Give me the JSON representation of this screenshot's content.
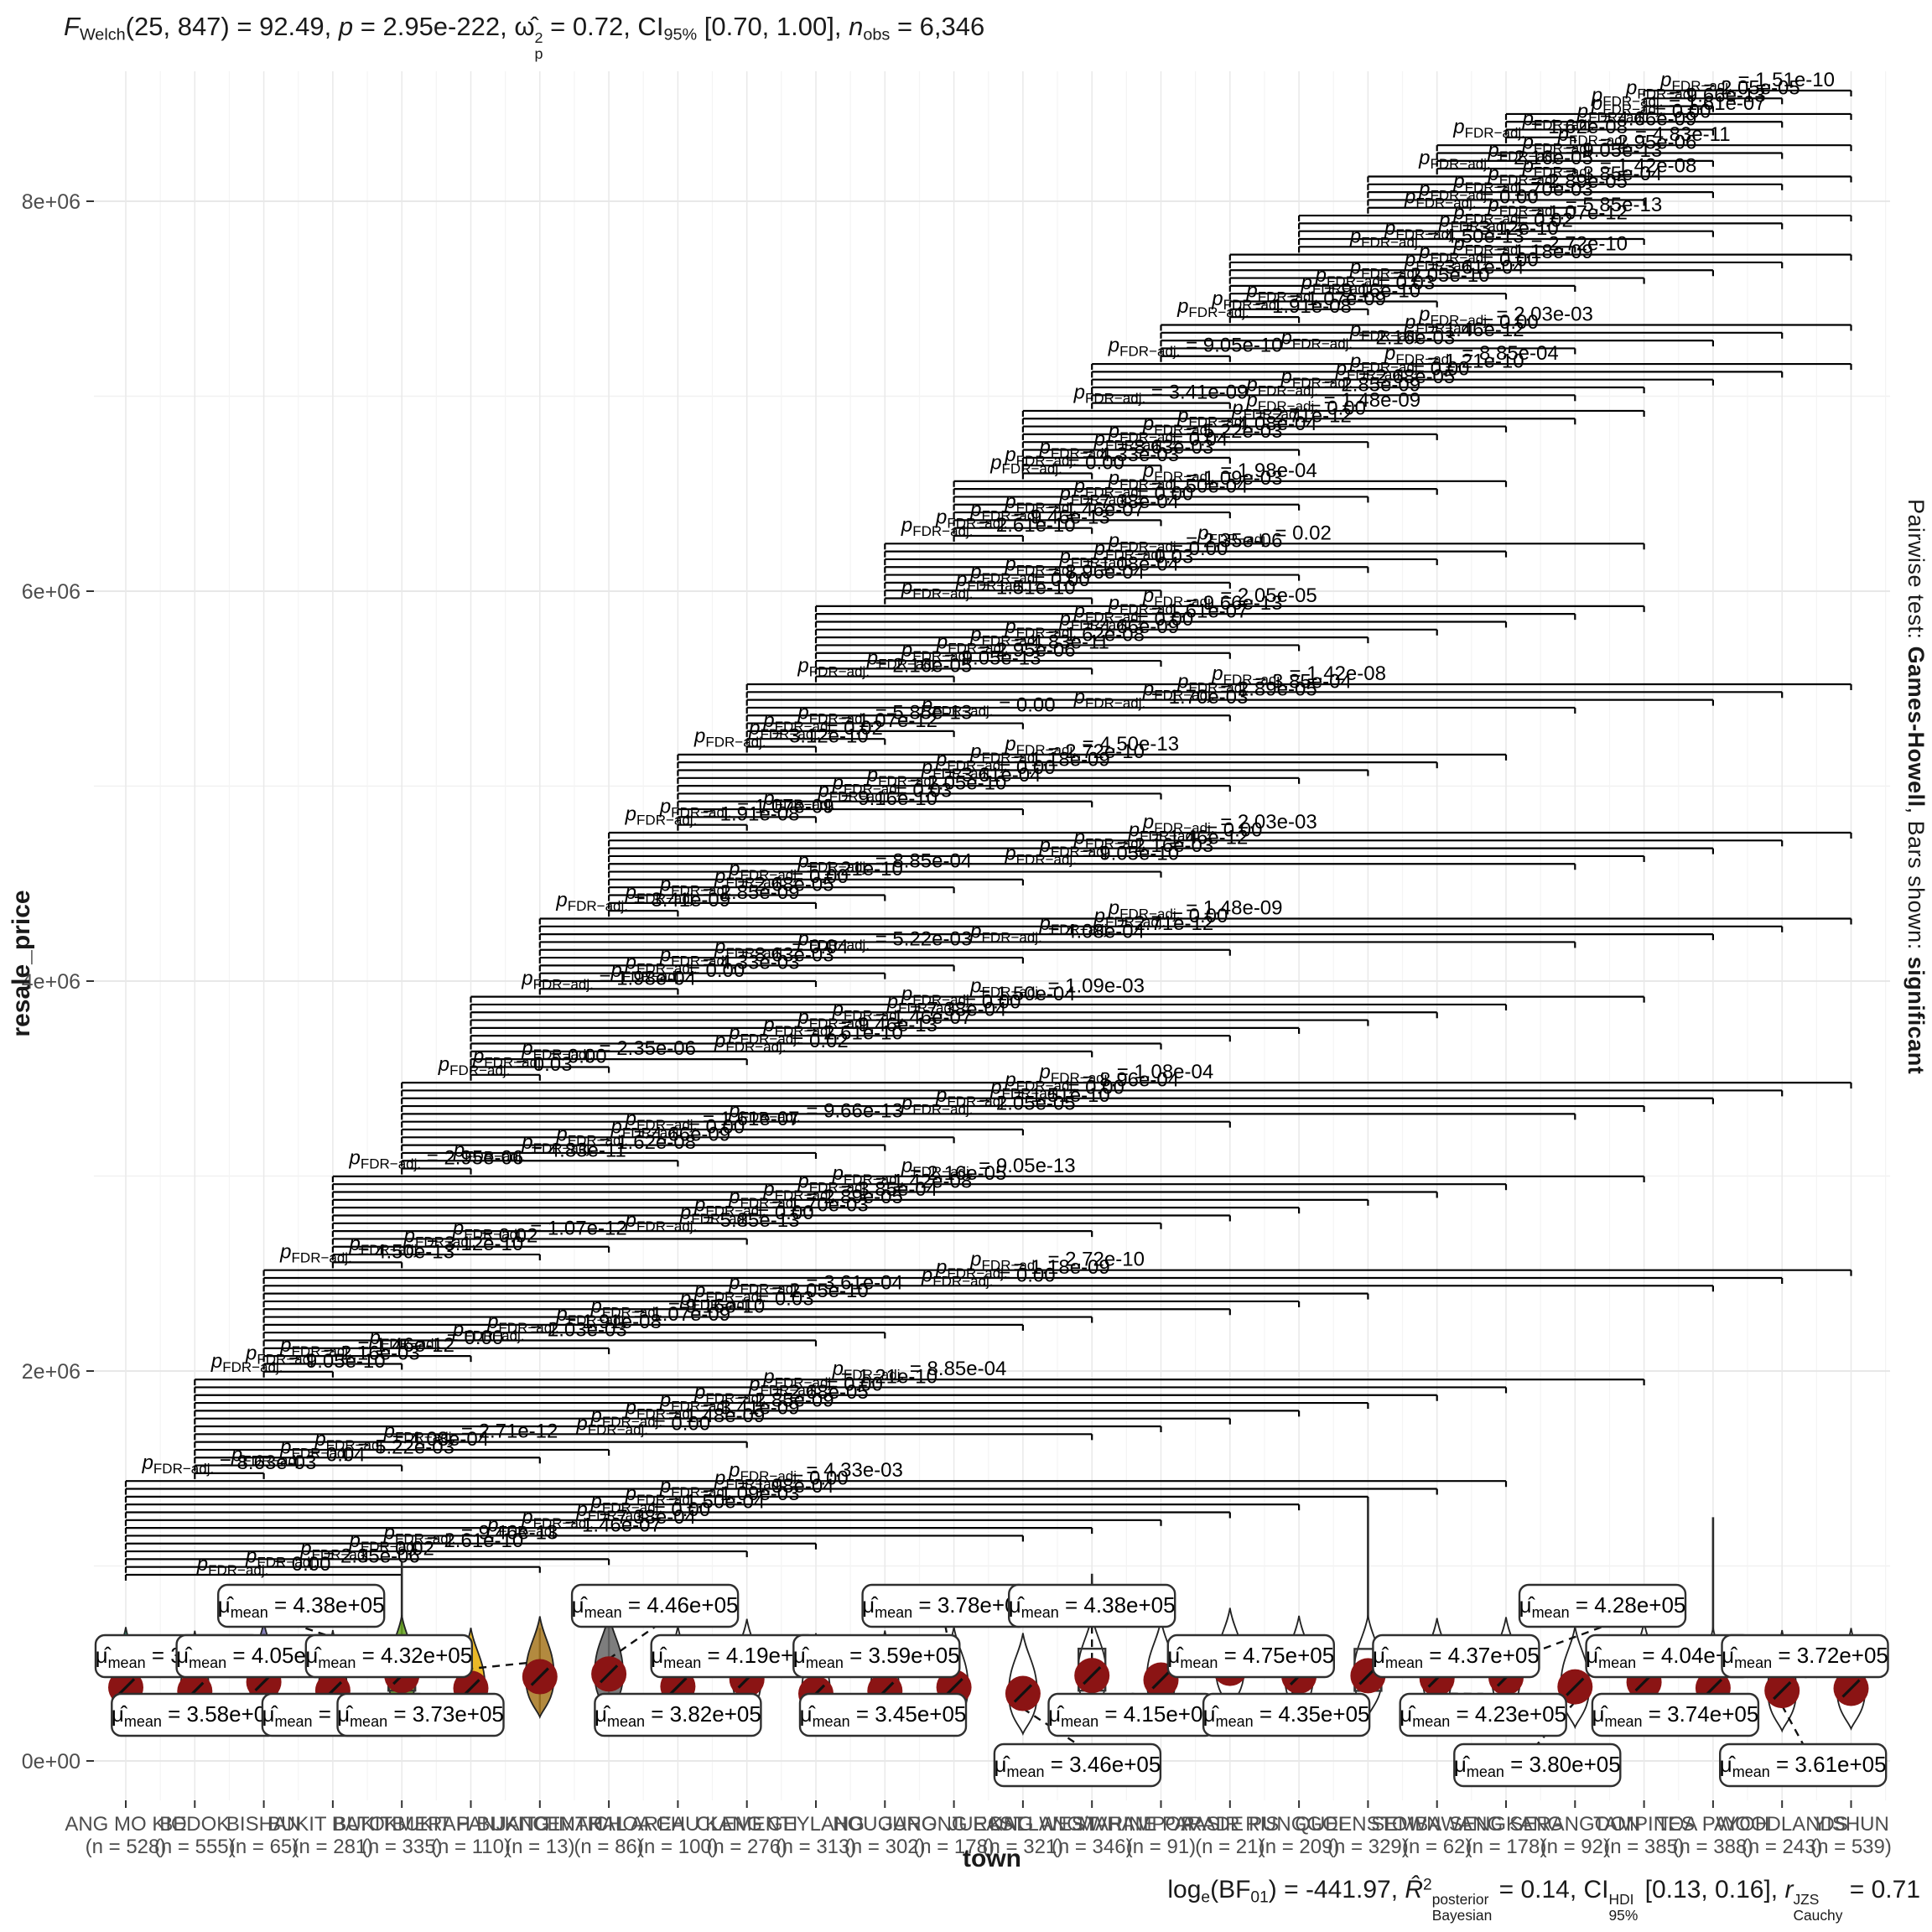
{
  "title_parts": [
    [
      "F",
      "i"
    ],
    [
      "Welch",
      "sb"
    ],
    [
      "(25, 847) = 92.49, ",
      "n"
    ],
    [
      "p",
      "i"
    ],
    [
      " = 2.95e-222, ",
      "n"
    ],
    [
      "ω̂",
      "n"
    ],
    [
      "2|p",
      "stk"
    ],
    [
      " = 0.72, CI",
      "n"
    ],
    [
      "95%",
      "sb"
    ],
    [
      " [0.70, 1.00], ",
      "n"
    ],
    [
      "n",
      "i"
    ],
    [
      "obs",
      "sb"
    ],
    [
      " = 6,346",
      "n"
    ]
  ],
  "caption_parts": [
    [
      "log",
      "n"
    ],
    [
      "e",
      "sb"
    ],
    [
      "(BF",
      "n"
    ],
    [
      "01",
      "sb"
    ],
    [
      ") = -441.97, ",
      "n"
    ],
    [
      "R̂",
      "i"
    ],
    [
      "2",
      "sp"
    ],
    [
      "posterior|Bayesian",
      "stk"
    ],
    [
      " = 0.14, CI",
      "n"
    ],
    [
      "HDI|95%",
      "stk"
    ],
    [
      " [0.13, 0.16], ",
      "n"
    ],
    [
      "r",
      "i"
    ],
    [
      "JZS|Cauchy",
      "stk"
    ],
    [
      " = 0.71",
      "n"
    ]
  ],
  "right_strip_parts": [
    [
      "Pairwise test: ",
      "n"
    ],
    [
      "Games-Howell",
      "b"
    ],
    [
      ", Bars shown: ",
      "n"
    ],
    [
      "significant",
      "b"
    ]
  ],
  "y_axis": {
    "label": "resale_price",
    "tick_labels": [
      "0e+00",
      "2e+06",
      "4e+06",
      "6e+06",
      "8e+06"
    ],
    "tick_values": [
      0,
      2000000,
      4000000,
      6000000,
      8000000
    ]
  },
  "x_axis": {
    "label": "town"
  },
  "chart_data": {
    "type": "violin",
    "stats_line": "F Welch(25, 847) = 92.49, p = 2.95e-222, omega-hat-sq-p = 0.72, CI95% [0.70, 1.00], n obs = 6,346",
    "caption_line": "log e(BF01) = -441.97, R-hat-sq posterior Bayesian = 0.14, CI HDI 95% [0.13, 0.16], r JZS Cauchy = 0.71",
    "pairwise_note": "Pairwise test: Games-Howell, Bars shown: significant",
    "xlabel": "town",
    "ylabel": "resale_price",
    "ylim": [
      0,
      8600000
    ],
    "mean_label_prefix": "μ̂",
    "mean_label_sub": "mean",
    "mean_point_color": "#8B1414",
    "palette_name": "Dark2",
    "towns": [
      {
        "name": "ANG MO KIO",
        "n": 528,
        "mean": 377000,
        "mean_label": "3.77e+05",
        "color": "#1B9E77",
        "spike": null,
        "box": false,
        "side": "A",
        "dx": 40
      },
      {
        "name": "BEDOK",
        "n": 555,
        "mean": 358000,
        "mean_label": "3.58e+05",
        "color": "#D95F02",
        "spike": null,
        "box": false,
        "side": "B",
        "dx": 0
      },
      {
        "name": "BISHAN",
        "n": 65,
        "mean": 405000,
        "mean_label": "4.05e+05",
        "color": "#7570B3",
        "spike": null,
        "box": true,
        "side": "A",
        "dx": -5
      },
      {
        "name": "BUKIT BATOK",
        "n": 281,
        "mean": 361000,
        "mean_label": "3.61e+05",
        "color": "#E7298A",
        "spike": null,
        "box": false,
        "side": "B",
        "dx": 15
      },
      {
        "name": "BUKIT MERAH",
        "n": 335,
        "mean": 438000,
        "mean_label": "4.38e+05",
        "color": "#66A61E",
        "spike": 1020000,
        "box": true,
        "side": "T",
        "dx": -120
      },
      {
        "name": "BUKIT PANJANG",
        "n": 110,
        "mean": 373000,
        "mean_label": "3.73e+05",
        "color": "#E6AB02",
        "spike": null,
        "box": false,
        "side": "B",
        "dx": -60
      },
      {
        "name": "BUKIT TIMAH",
        "n": 13,
        "mean": 432000,
        "mean_label": "4.32e+05",
        "color": "#A6761D",
        "spike": null,
        "box": false,
        "side": "A",
        "dx": -180
      },
      {
        "name": "CENTRAL AREA",
        "n": 86,
        "mean": 446000,
        "mean_label": "4.46e+05",
        "color": "#666666",
        "spike": null,
        "box": false,
        "side": "T",
        "dx": 55
      },
      {
        "name": "CHOA CHU KANG",
        "n": 100,
        "mean": 382000,
        "mean_label": "3.82e+05",
        "color": null,
        "spike": null,
        "box": false,
        "side": "B",
        "dx": 0
      },
      {
        "name": "CLEMENTI",
        "n": 276,
        "mean": 419000,
        "mean_label": "4.19e+05",
        "color": null,
        "spike": null,
        "box": false,
        "side": "A",
        "dx": -15
      },
      {
        "name": "GEYLANG",
        "n": 313,
        "mean": 345000,
        "mean_label": "3.45e+05",
        "color": null,
        "spike": null,
        "box": false,
        "side": "B",
        "dx": 80
      },
      {
        "name": "HOUGANG",
        "n": 302,
        "mean": 359000,
        "mean_label": "3.59e+05",
        "color": null,
        "spike": null,
        "box": false,
        "side": "A",
        "dx": -10
      },
      {
        "name": "JURONG EAST",
        "n": 178,
        "mean": 378000,
        "mean_label": "3.78e+05",
        "color": null,
        "spike": null,
        "box": false,
        "side": "T",
        "dx": -10
      },
      {
        "name": "JURONG WEST",
        "n": 321,
        "mean": 346000,
        "mean_label": "3.46e+05",
        "color": null,
        "spike": null,
        "box": false,
        "side": "L",
        "dx": 65
      },
      {
        "name": "KALLANG/WHAMPOA",
        "n": 346,
        "mean": 438000,
        "mean_label": "4.38e+05",
        "color": null,
        "spike": 960000,
        "box": true,
        "side": "T",
        "dx": 0
      },
      {
        "name": "MARINE PARADE",
        "n": 91,
        "mean": 415000,
        "mean_label": "4.15e+05",
        "color": null,
        "spike": null,
        "box": false,
        "side": "B",
        "dx": -35
      },
      {
        "name": "PASIR RIS",
        "n": 21,
        "mean": 475000,
        "mean_label": "4.75e+05",
        "color": null,
        "spike": null,
        "box": false,
        "side": "A",
        "dx": 25
      },
      {
        "name": "PUNGGOL",
        "n": 209,
        "mean": 435000,
        "mean_label": "4.35e+05",
        "color": null,
        "spike": null,
        "box": false,
        "side": "B",
        "dx": -15
      },
      {
        "name": "QUEENSTOWN",
        "n": 329,
        "mean": 437000,
        "mean_label": "4.37e+05",
        "color": null,
        "spike": 1350000,
        "box": true,
        "side": "A",
        "dx": 105
      },
      {
        "name": "SEMBAWANG",
        "n": 62,
        "mean": 423000,
        "mean_label": "4.23e+05",
        "color": null,
        "spike": null,
        "box": false,
        "side": "B",
        "dx": 55
      },
      {
        "name": "SENGKANG",
        "n": 178,
        "mean": 428000,
        "mean_label": "4.28e+05",
        "color": null,
        "spike": null,
        "box": false,
        "side": "T",
        "dx": 115
      },
      {
        "name": "SERANGOON",
        "n": 92,
        "mean": 380000,
        "mean_label": "3.80e+05",
        "color": null,
        "spike": null,
        "box": false,
        "side": "L",
        "dx": -45
      },
      {
        "name": "TAMPINES",
        "n": 385,
        "mean": 404000,
        "mean_label": "4.04e+05",
        "color": null,
        "spike": null,
        "box": false,
        "side": "A",
        "dx": 30
      },
      {
        "name": "TOA PAYOH",
        "n": 388,
        "mean": 374000,
        "mean_label": "3.74e+05",
        "color": null,
        "spike": 1250000,
        "box": false,
        "side": "B",
        "dx": -45
      },
      {
        "name": "WOODLANDS",
        "n": 243,
        "mean": 361000,
        "mean_label": "3.61e+05",
        "color": null,
        "spike": null,
        "box": false,
        "side": "L",
        "dx": 25
      },
      {
        "name": "YISHUN",
        "n": 539,
        "mean": 372000,
        "mean_label": "3.72e+05",
        "color": null,
        "spike": null,
        "box": false,
        "side": "A",
        "dx": -55
      }
    ],
    "pairwise": {
      "test": "Games-Howell",
      "shown": "significant",
      "bar_label_prefix": "p",
      "bar_label_sub": "FDR−adj.",
      "p_value_labels": [
        "0.00",
        "2.35e-06",
        "0.02",
        "2.61e-10",
        "9.46e-13",
        "1.46e-07",
        "7.38e-04",
        "0.00",
        "1.50e-04",
        "1.09e-03",
        "1.98e-04",
        "0.00",
        "4.33e-03",
        "8.63e-03",
        "0.04",
        "5.22e-03",
        "4.08e-04",
        "2.71e-12",
        "0.00",
        "1.48e-09",
        "3.41e-09",
        "2.85e-09",
        "2.68e-05",
        "0.00",
        "1.21e-10",
        "8.85e-04",
        "9.05e-10",
        "2.16e-03",
        "1.46e-12",
        "0.00",
        "2.03e-03",
        "1.91e-08",
        "1.07e-09",
        "9.16e-10",
        "0.03",
        "2.05e-10",
        "3.61e-04",
        "0.00",
        "1.18e-09",
        "2.72e-10",
        "4.50e-13",
        "3.12e-10",
        "0.02",
        "1.07e-12",
        "5.85e-13",
        "0.00",
        "1.70e-03",
        "2.89e-05",
        "3.85e-04",
        "1.42e-08",
        "2.16e-05",
        "9.05e-13",
        "2.95e-06",
        "4.83e-11",
        "1.62e-08",
        "4.66e-09",
        "0.00",
        "1.61e-07",
        "9.66e-13",
        "2.05e-05",
        "1.51e-10",
        "0.00",
        "8.96e-04",
        "1.08e-04",
        "0.03"
      ]
    }
  }
}
